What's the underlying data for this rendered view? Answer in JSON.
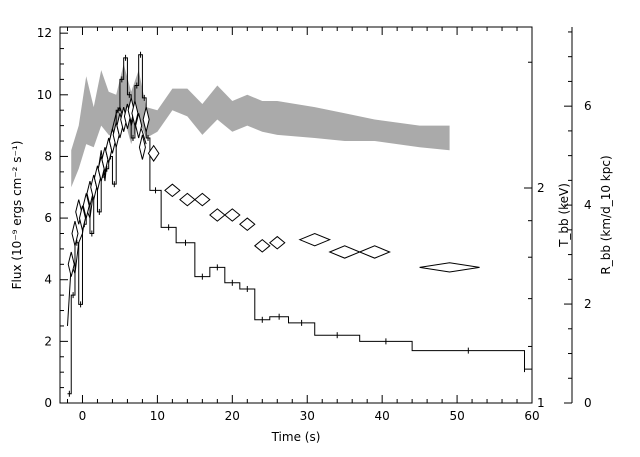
{
  "chart_data": {
    "type": "line",
    "title": "",
    "xlabel": "Time (s)",
    "ylabel_left": "Flux (10⁻⁹ ergs cm⁻² s⁻¹)",
    "ylabel_right_inner": "T_bb (keV)",
    "ylabel_right_outer": "R_bb (km/d_10 kpc)",
    "xlim": [
      -3,
      60
    ],
    "ylim": [
      0,
      12.2
    ],
    "grid": false,
    "legend": "none",
    "x_ticks": [
      0,
      10,
      20,
      30,
      40,
      50,
      60
    ],
    "y_ticks_left": [
      0,
      2,
      4,
      6,
      8,
      10,
      12
    ],
    "y_ticks_temperature": [
      1,
      2
    ],
    "temperature_scale": "log",
    "y_ticks_radius": [
      0,
      2,
      4,
      6
    ],
    "radius_lim": [
      0,
      7.6
    ],
    "series": [
      {
        "kind": "step",
        "color": "#000000",
        "values": [
          [
            -2,
            0.3
          ],
          [
            -1.5,
            3.5
          ],
          [
            -1,
            5.2
          ],
          [
            -0.5,
            3.2
          ],
          [
            0,
            5.8
          ],
          [
            0.5,
            6.6
          ],
          [
            1,
            5.5
          ],
          [
            1.5,
            7.0
          ],
          [
            2,
            6.2
          ],
          [
            2.5,
            7.4
          ],
          [
            3,
            7.6
          ],
          [
            3.5,
            8.0
          ],
          [
            4,
            7.1
          ],
          [
            4.5,
            9.5
          ],
          [
            5,
            10.5
          ],
          [
            5.5,
            11.2
          ],
          [
            6,
            10.0
          ],
          [
            6.5,
            8.6
          ],
          [
            7,
            10.3
          ],
          [
            7.5,
            11.3
          ],
          [
            8,
            9.9
          ],
          [
            8.5,
            8.6
          ],
          [
            9,
            6.9
          ],
          [
            10.5,
            5.7
          ],
          [
            12.5,
            5.2
          ],
          [
            15,
            4.1
          ],
          [
            17,
            4.4
          ],
          [
            19,
            3.9
          ],
          [
            21,
            3.7
          ],
          [
            23,
            2.7
          ],
          [
            25,
            2.8
          ],
          [
            27.5,
            2.6
          ],
          [
            31,
            2.2
          ],
          [
            37,
            2.0
          ],
          [
            44,
            1.7
          ],
          [
            59,
            1.1
          ]
        ],
        "x_end": 60
      },
      {
        "kind": "line",
        "color": "#000000",
        "values": [
          [
            -2,
            2.5
          ],
          [
            -1.5,
            4.5
          ],
          [
            -1,
            4.2
          ],
          [
            -0.5,
            5.2
          ],
          [
            0,
            5.5
          ],
          [
            0.5,
            6.3
          ],
          [
            1,
            6.0
          ],
          [
            1.5,
            6.9
          ],
          [
            2,
            7.4
          ],
          [
            2.5,
            8.2
          ],
          [
            3,
            7.2
          ],
          [
            3.5,
            8.4
          ],
          [
            4,
            8.9
          ],
          [
            4.5,
            9.4
          ],
          [
            5,
            9.6
          ],
          [
            5.5,
            9.2
          ],
          [
            6,
            9.7
          ],
          [
            6.5,
            9.0
          ],
          [
            7,
            9.4
          ],
          [
            7.5,
            9.1
          ],
          [
            8,
            8.8
          ],
          [
            8.5,
            8.4
          ]
        ]
      },
      {
        "kind": "diamond",
        "color": "#000000",
        "values": [
          [
            -1.5,
            4.5
          ],
          [
            -1,
            5.5
          ],
          [
            -0.5,
            6.2
          ],
          [
            0,
            6.0
          ],
          [
            0.5,
            6.4
          ],
          [
            1,
            6.8
          ],
          [
            1.5,
            7.0
          ],
          [
            2,
            7.3
          ],
          [
            2.5,
            7.6
          ],
          [
            3,
            7.9
          ],
          [
            3.5,
            8.2
          ],
          [
            4,
            8.5
          ],
          [
            4.5,
            8.7
          ],
          [
            5,
            9.0
          ],
          [
            5.5,
            9.2
          ],
          [
            6,
            9.3
          ],
          [
            6.5,
            9.5
          ],
          [
            7,
            9.4
          ],
          [
            7.5,
            9.0
          ],
          [
            8,
            8.3
          ],
          [
            8.5,
            9.2
          ],
          [
            9.5,
            8.1
          ],
          [
            12,
            6.9
          ],
          [
            14,
            6.6
          ],
          [
            16,
            6.6
          ],
          [
            18,
            6.1
          ],
          [
            20,
            6.1
          ],
          [
            22,
            5.8
          ],
          [
            24,
            5.1
          ],
          [
            26,
            5.2
          ],
          [
            31,
            5.3
          ],
          [
            35,
            4.9
          ],
          [
            39,
            4.9
          ],
          [
            49,
            4.4
          ]
        ],
        "half_widths": [
          0.4,
          0.4,
          0.4,
          0.4,
          0.4,
          0.4,
          0.4,
          0.4,
          0.4,
          0.4,
          0.4,
          0.4,
          0.4,
          0.4,
          0.4,
          0.4,
          0.4,
          0.4,
          0.4,
          0.4,
          0.4,
          0.7,
          1.0,
          1.0,
          1.0,
          1.0,
          1.0,
          1.0,
          1.0,
          1.0,
          2.0,
          2.0,
          2.0,
          4.0
        ],
        "half_heights": [
          0.4,
          0.4,
          0.4,
          0.4,
          0.4,
          0.4,
          0.4,
          0.4,
          0.4,
          0.4,
          0.4,
          0.4,
          0.4,
          0.4,
          0.4,
          0.4,
          0.4,
          0.4,
          0.4,
          0.4,
          0.4,
          0.25,
          0.2,
          0.2,
          0.2,
          0.2,
          0.2,
          0.2,
          0.2,
          0.2,
          0.2,
          0.2,
          0.2,
          0.15
        ]
      },
      {
        "kind": "band",
        "color": "#aaaaaa",
        "x": [
          -1.5,
          -0.5,
          0.5,
          1.5,
          2.5,
          3.5,
          4.5,
          5.5,
          6.5,
          7.5,
          8.5,
          10,
          12,
          14,
          16,
          18,
          20,
          22,
          24,
          26,
          31,
          35,
          39,
          45,
          49
        ],
        "upper": [
          8.2,
          9.0,
          10.6,
          9.6,
          10.8,
          10.1,
          10.0,
          11.0,
          10.1,
          10.8,
          9.6,
          9.5,
          10.2,
          10.2,
          9.7,
          10.3,
          9.8,
          10.0,
          9.8,
          9.8,
          9.6,
          9.4,
          9.2,
          9.0,
          9.0
        ],
        "lower": [
          7.0,
          7.6,
          8.4,
          8.3,
          9.0,
          8.7,
          8.6,
          9.3,
          8.4,
          9.2,
          8.6,
          8.8,
          9.5,
          9.3,
          8.7,
          9.2,
          8.8,
          9.0,
          8.8,
          8.7,
          8.6,
          8.5,
          8.5,
          8.3,
          8.2
        ]
      }
    ]
  }
}
